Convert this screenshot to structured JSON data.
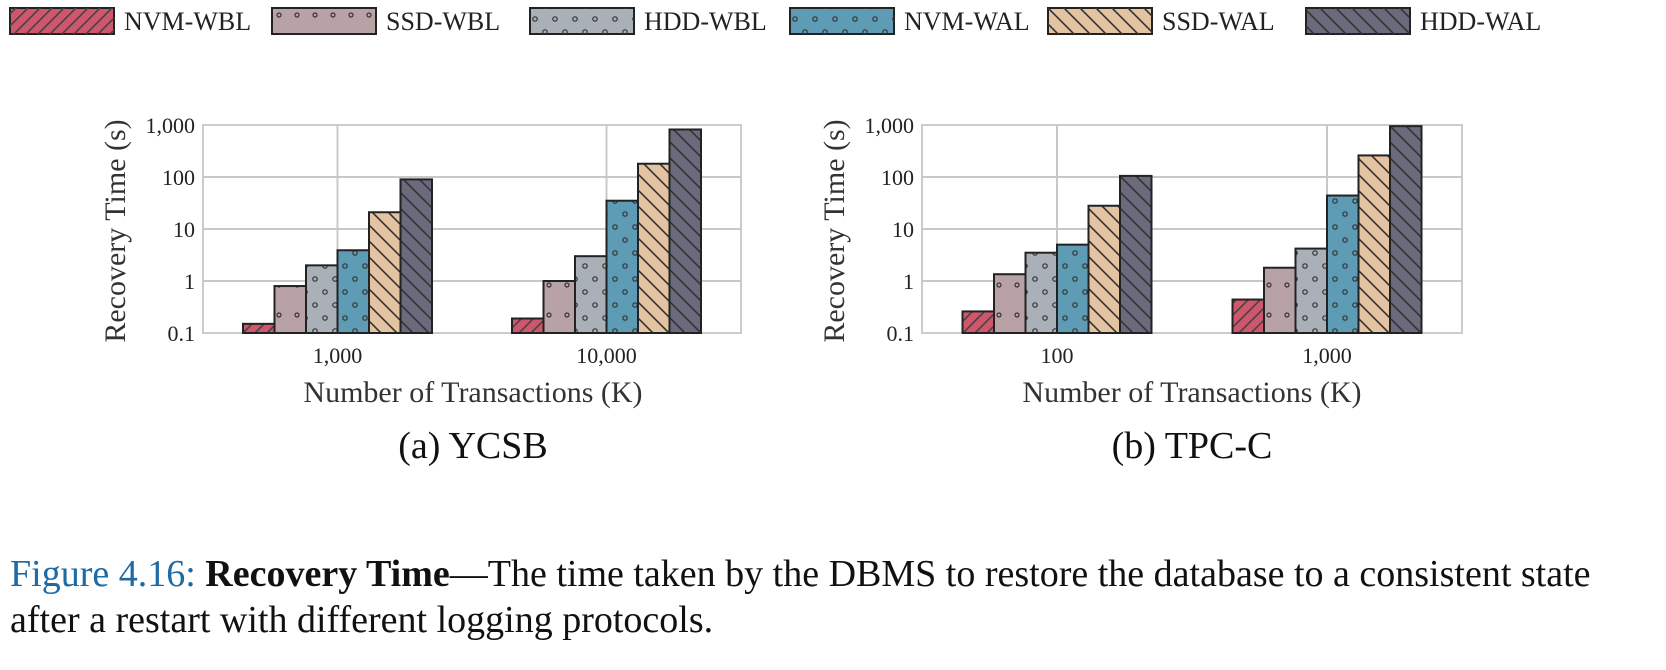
{
  "legend": [
    {
      "name": "NVM-WBL",
      "color": "#d1566c",
      "pattern": "hatch-fwd"
    },
    {
      "name": "SSD-WBL",
      "color": "#b9a2a6",
      "pattern": "dots-sparse"
    },
    {
      "name": "HDD-WBL",
      "color": "#aab0b8",
      "pattern": "dots"
    },
    {
      "name": "NVM-WAL",
      "color": "#5e9bb5",
      "pattern": "dots"
    },
    {
      "name": "SSD-WAL",
      "color": "#e4c3a2",
      "pattern": "hatch-back"
    },
    {
      "name": "HDD-WAL",
      "color": "#6b6a7d",
      "pattern": "hatch-back"
    }
  ],
  "chart_data": [
    {
      "type": "bar",
      "panel_title": "(a) YCSB",
      "xlabel": "Number of Transactions (K)",
      "ylabel": "Recovery Time (s)",
      "yscale": "log",
      "ylim": [
        0.1,
        1000
      ],
      "yticks": [
        "0.1",
        "1",
        "10",
        "100",
        "1,000"
      ],
      "categories": [
        "1,000",
        "10,000"
      ],
      "series": [
        {
          "name": "NVM-WBL",
          "values": [
            0.15,
            0.19
          ]
        },
        {
          "name": "SSD-WBL",
          "values": [
            0.8,
            1.0
          ]
        },
        {
          "name": "HDD-WBL",
          "values": [
            2.0,
            3.0
          ]
        },
        {
          "name": "NVM-WAL",
          "values": [
            3.9,
            35
          ]
        },
        {
          "name": "SSD-WAL",
          "values": [
            21,
            180
          ]
        },
        {
          "name": "HDD-WAL",
          "values": [
            90,
            820
          ]
        }
      ]
    },
    {
      "type": "bar",
      "panel_title": "(b) TPC-C",
      "xlabel": "Number of Transactions (K)",
      "ylabel": "Recovery Time (s)",
      "yscale": "log",
      "ylim": [
        0.1,
        1000
      ],
      "yticks": [
        "0.1",
        "1",
        "10",
        "100",
        "1,000"
      ],
      "categories": [
        "100",
        "1,000"
      ],
      "series": [
        {
          "name": "NVM-WBL",
          "values": [
            0.26,
            0.44
          ]
        },
        {
          "name": "SSD-WBL",
          "values": [
            1.35,
            1.8
          ]
        },
        {
          "name": "HDD-WBL",
          "values": [
            3.5,
            4.2
          ]
        },
        {
          "name": "NVM-WAL",
          "values": [
            5.0,
            44
          ]
        },
        {
          "name": "SSD-WAL",
          "values": [
            28,
            260
          ]
        },
        {
          "name": "HDD-WAL",
          "values": [
            105,
            950
          ]
        }
      ]
    }
  ],
  "caption": {
    "label": "Figure 4.16:",
    "bold": "Recovery Time",
    "text": "—The time taken by the DBMS to restore the database to a consistent state after a restart with different logging protocols."
  }
}
